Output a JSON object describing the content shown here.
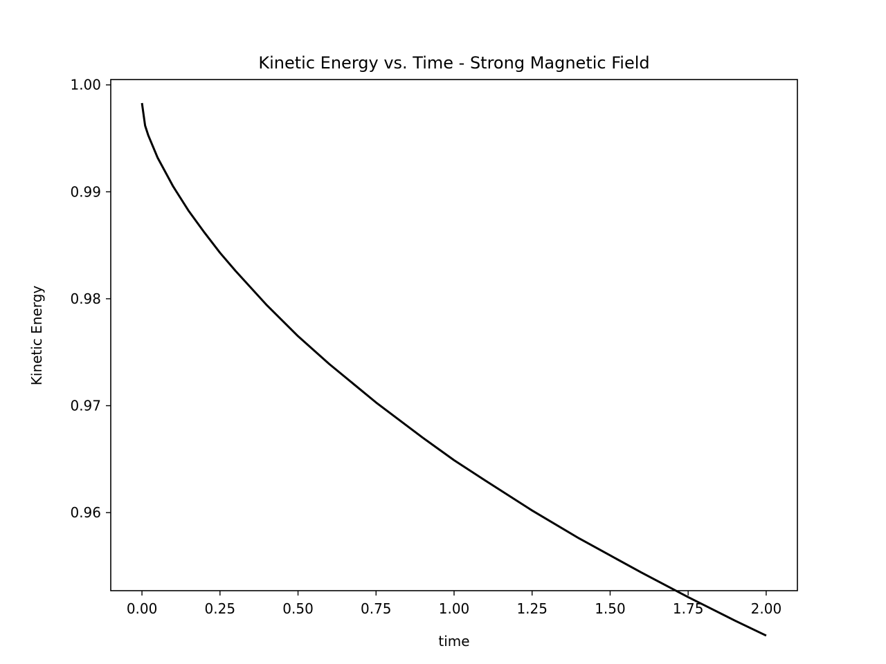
{
  "chart_data": {
    "type": "line",
    "title": "Kinetic Energy vs. Time - Strong Magnetic Field",
    "xlabel": "time",
    "ylabel": "Kinetic Energy",
    "xlim": [
      -0.1,
      2.1
    ],
    "ylim": [
      0.9527,
      1.0005
    ],
    "xticks": [
      0.0,
      0.25,
      0.5,
      0.75,
      1.0,
      1.25,
      1.5,
      1.75,
      2.0
    ],
    "xtick_labels": [
      "0.00",
      "0.25",
      "0.50",
      "0.75",
      "1.00",
      "1.25",
      "1.50",
      "1.75",
      "2.00"
    ],
    "yticks": [
      0.96,
      0.97,
      0.98,
      0.99,
      1.0
    ],
    "ytick_labels": [
      "0.96",
      "0.97",
      "0.98",
      "0.99",
      "1.00"
    ],
    "grid": false,
    "legend": "none",
    "series": [
      {
        "color": "#000000",
        "x": [
          0.0,
          0.01,
          0.02,
          0.05,
          0.1,
          0.15,
          0.2,
          0.25,
          0.3,
          0.4,
          0.5,
          0.6,
          0.75,
          0.9,
          1.0,
          1.1,
          1.25,
          1.4,
          1.5,
          1.6,
          1.75,
          1.9,
          2.0
        ],
        "y": [
          0.9983,
          0.9962,
          0.9953,
          0.9932,
          0.9905,
          0.9882,
          0.9862,
          0.9843,
          0.9826,
          0.9794,
          0.9765,
          0.9739,
          0.9703,
          0.967,
          0.9649,
          0.963,
          0.9602,
          0.9576,
          0.956,
          0.9544,
          0.9521,
          0.9499,
          0.9485
        ]
      }
    ]
  }
}
